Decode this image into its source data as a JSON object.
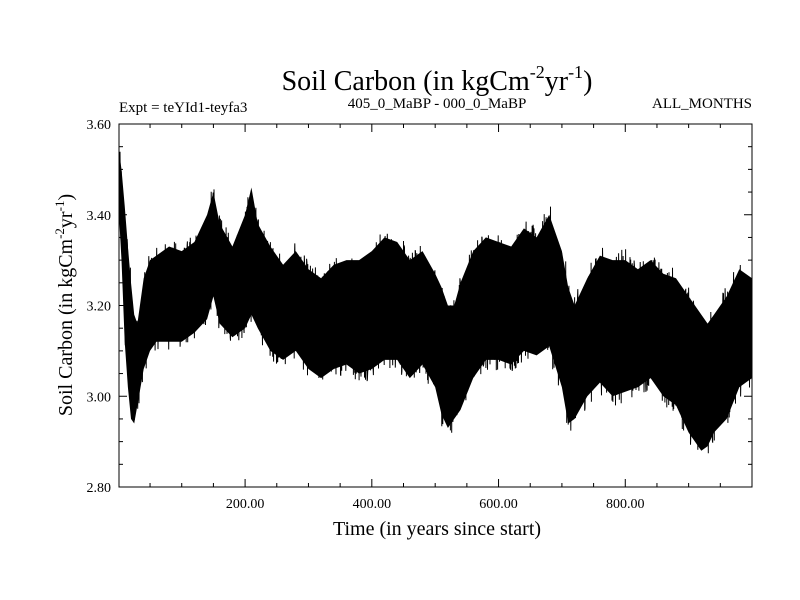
{
  "chart_data": {
    "type": "line",
    "title_main": "Soil Carbon (in kgCm",
    "title_sup1": "-2",
    "title_mid": "yr",
    "title_sup2": "-1",
    "title_end": ")",
    "subtitle_left": "Expt = teYId1-teyfa3",
    "subtitle_center": "405_0_MaBP - 000_0_MaBP",
    "subtitle_right": "ALL_MONTHS",
    "xlabel": "Time (in years since start)",
    "ylabel_main": "Soil Carbon (in kgCm",
    "ylabel_sup1": "-2",
    "ylabel_mid": "yr",
    "ylabel_sup2": "-1",
    "ylabel_end": ")",
    "xlim": [
      1,
      1000
    ],
    "ylim": [
      2.8,
      3.6
    ],
    "xticks": [
      200,
      400,
      600,
      800
    ],
    "xtick_labels": [
      "200.00",
      "400.00",
      "600.00",
      "800.00"
    ],
    "yticks": [
      2.8,
      3.0,
      3.2,
      3.4,
      3.6
    ],
    "ytick_labels": [
      "2.80",
      "3.00",
      "3.20",
      "3.40",
      "3.60"
    ],
    "series": [
      {
        "name": "Soil Carbon",
        "color": "#000000",
        "envelope": {
          "x": [
            1,
            5,
            10,
            15,
            20,
            25,
            30,
            40,
            50,
            60,
            80,
            100,
            120,
            140,
            150,
            160,
            180,
            200,
            210,
            220,
            240,
            260,
            280,
            300,
            320,
            340,
            360,
            380,
            400,
            420,
            440,
            460,
            480,
            500,
            510,
            520,
            530,
            540,
            560,
            580,
            600,
            620,
            640,
            660,
            680,
            700,
            710,
            720,
            740,
            760,
            780,
            800,
            820,
            840,
            860,
            880,
            900,
            920,
            930,
            940,
            960,
            980,
            1000
          ],
          "upper": [
            3.54,
            3.5,
            3.42,
            3.33,
            3.25,
            3.18,
            3.16,
            3.26,
            3.3,
            3.31,
            3.33,
            3.32,
            3.34,
            3.4,
            3.45,
            3.38,
            3.33,
            3.4,
            3.46,
            3.38,
            3.33,
            3.29,
            3.32,
            3.28,
            3.26,
            3.29,
            3.3,
            3.3,
            3.32,
            3.35,
            3.34,
            3.3,
            3.32,
            3.27,
            3.24,
            3.2,
            3.2,
            3.25,
            3.32,
            3.35,
            3.34,
            3.33,
            3.37,
            3.35,
            3.4,
            3.32,
            3.24,
            3.2,
            3.26,
            3.31,
            3.3,
            3.3,
            3.28,
            3.3,
            3.27,
            3.26,
            3.22,
            3.18,
            3.16,
            3.18,
            3.22,
            3.28,
            3.26
          ],
          "lower": [
            3.4,
            3.3,
            3.12,
            3.02,
            2.95,
            2.94,
            2.98,
            3.06,
            3.1,
            3.12,
            3.12,
            3.12,
            3.14,
            3.17,
            3.22,
            3.16,
            3.13,
            3.15,
            3.18,
            3.15,
            3.1,
            3.08,
            3.1,
            3.06,
            3.04,
            3.06,
            3.07,
            3.05,
            3.06,
            3.08,
            3.08,
            3.04,
            3.07,
            3.02,
            2.96,
            2.93,
            2.95,
            2.97,
            3.04,
            3.08,
            3.08,
            3.07,
            3.1,
            3.09,
            3.11,
            3.02,
            2.94,
            2.95,
            3.0,
            3.03,
            3.0,
            3.01,
            3.02,
            3.04,
            3.0,
            2.98,
            2.92,
            2.88,
            2.89,
            2.92,
            2.95,
            3.02,
            3.04
          ]
        }
      }
    ]
  }
}
